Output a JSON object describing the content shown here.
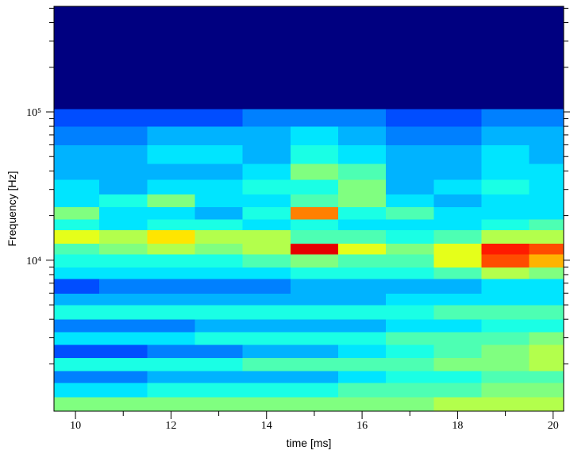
{
  "chart_data": {
    "type": "heatmap",
    "xlabel": "time [ms]",
    "ylabel": "Frequency [Hz]",
    "colormap": "jet",
    "clim": [
      0,
      1
    ],
    "ylog": true,
    "xlim": [
      9.55,
      20.22
    ],
    "ylim": [
      960,
      515000
    ],
    "xticks": [
      10,
      12,
      14,
      16,
      18,
      20
    ],
    "xminorticks": [
      11,
      13,
      15,
      17,
      19
    ],
    "yticks": [
      {
        "value": 10000,
        "label": "10⁴"
      },
      {
        "value": 100000,
        "label": "10⁵"
      }
    ],
    "yminorticks": [
      2000,
      3000,
      4000,
      5000,
      6000,
      7000,
      8000,
      9000,
      20000,
      30000,
      40000,
      50000,
      60000,
      70000,
      80000,
      90000,
      200000,
      300000,
      400000,
      500000
    ],
    "xbins": [
      9.55,
      10.5,
      11.5,
      12.5,
      13.5,
      14.5,
      15.5,
      16.5,
      17.5,
      18.5,
      19.5,
      20.22
    ],
    "ybins": [
      960,
      1200,
      1500,
      1800,
      2200,
      2700,
      3300,
      4000,
      5000,
      6000,
      7500,
      9000,
      11000,
      13000,
      16000,
      19000,
      23000,
      28000,
      35000,
      45000,
      60000,
      80000,
      105000,
      515000
    ],
    "z": [
      [
        0.5,
        0.5,
        0.5,
        0.5,
        0.5,
        0.5,
        0.5,
        0.5,
        0.55,
        0.55,
        0.55
      ],
      [
        0.35,
        0.35,
        0.4,
        0.4,
        0.4,
        0.4,
        0.45,
        0.45,
        0.45,
        0.5,
        0.5
      ],
      [
        0.25,
        0.25,
        0.3,
        0.3,
        0.3,
        0.3,
        0.35,
        0.4,
        0.4,
        0.45,
        0.45
      ],
      [
        0.4,
        0.4,
        0.4,
        0.4,
        0.45,
        0.45,
        0.45,
        0.45,
        0.5,
        0.5,
        0.55
      ],
      [
        0.2,
        0.2,
        0.25,
        0.25,
        0.3,
        0.3,
        0.35,
        0.4,
        0.45,
        0.5,
        0.55
      ],
      [
        0.35,
        0.35,
        0.35,
        0.4,
        0.4,
        0.4,
        0.4,
        0.45,
        0.45,
        0.45,
        0.5
      ],
      [
        0.25,
        0.25,
        0.25,
        0.3,
        0.3,
        0.3,
        0.3,
        0.35,
        0.35,
        0.4,
        0.4
      ],
      [
        0.4,
        0.4,
        0.4,
        0.4,
        0.4,
        0.4,
        0.4,
        0.4,
        0.45,
        0.45,
        0.45
      ],
      [
        0.3,
        0.3,
        0.3,
        0.3,
        0.3,
        0.3,
        0.3,
        0.35,
        0.35,
        0.35,
        0.35
      ],
      [
        0.2,
        0.25,
        0.25,
        0.25,
        0.25,
        0.3,
        0.3,
        0.3,
        0.3,
        0.35,
        0.35
      ],
      [
        0.35,
        0.35,
        0.35,
        0.35,
        0.35,
        0.4,
        0.4,
        0.4,
        0.45,
        0.55,
        0.5
      ],
      [
        0.4,
        0.4,
        0.4,
        0.4,
        0.45,
        0.5,
        0.45,
        0.45,
        0.6,
        0.8,
        0.7
      ],
      [
        0.45,
        0.5,
        0.55,
        0.5,
        0.55,
        0.9,
        0.6,
        0.5,
        0.6,
        0.85,
        0.8
      ],
      [
        0.6,
        0.55,
        0.65,
        0.55,
        0.55,
        0.45,
        0.45,
        0.4,
        0.45,
        0.55,
        0.55
      ],
      [
        0.4,
        0.35,
        0.4,
        0.4,
        0.35,
        0.4,
        0.35,
        0.35,
        0.35,
        0.4,
        0.45
      ],
      [
        0.5,
        0.35,
        0.35,
        0.3,
        0.4,
        0.75,
        0.4,
        0.45,
        0.35,
        0.35,
        0.35
      ],
      [
        0.35,
        0.4,
        0.5,
        0.35,
        0.35,
        0.45,
        0.5,
        0.35,
        0.3,
        0.35,
        0.35
      ],
      [
        0.35,
        0.3,
        0.35,
        0.35,
        0.4,
        0.4,
        0.5,
        0.3,
        0.35,
        0.4,
        0.35
      ],
      [
        0.3,
        0.3,
        0.3,
        0.3,
        0.35,
        0.5,
        0.45,
        0.3,
        0.3,
        0.35,
        0.35
      ],
      [
        0.3,
        0.3,
        0.35,
        0.35,
        0.3,
        0.4,
        0.35,
        0.3,
        0.3,
        0.35,
        0.3
      ],
      [
        0.25,
        0.25,
        0.3,
        0.3,
        0.3,
        0.35,
        0.3,
        0.25,
        0.25,
        0.3,
        0.3
      ],
      [
        0.2,
        0.2,
        0.2,
        0.2,
        0.25,
        0.25,
        0.25,
        0.2,
        0.2,
        0.25,
        0.25
      ],
      [
        0,
        0,
        0,
        0,
        0,
        0,
        0,
        0,
        0,
        0,
        0
      ]
    ]
  }
}
